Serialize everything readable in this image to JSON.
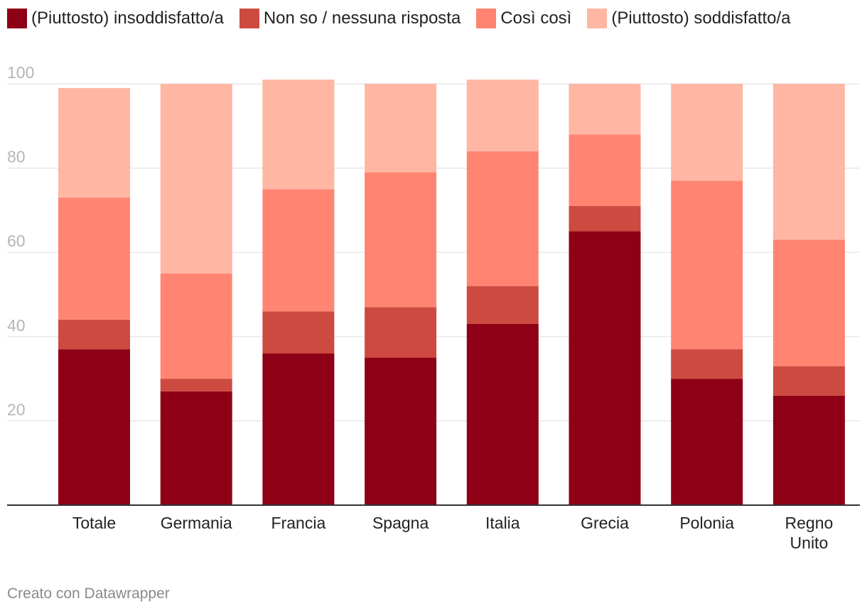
{
  "chart_data": {
    "type": "bar",
    "stacked": true,
    "categories": [
      "Totale",
      "Germania",
      "Francia",
      "Spagna",
      "Italia",
      "Grecia",
      "Polonia",
      "Regno Unito"
    ],
    "series": [
      {
        "name": "(Piuttosto) insoddisfatto/a",
        "color": "#8e0016",
        "values": [
          37,
          27,
          36,
          35,
          43,
          65,
          30,
          26
        ]
      },
      {
        "name": "Non so / nessuna risposta",
        "color": "#cd4a40",
        "values": [
          7,
          3,
          10,
          12,
          9,
          6,
          7,
          7
        ]
      },
      {
        "name": "Così così",
        "color": "#ff8572",
        "values": [
          29,
          25,
          29,
          32,
          32,
          17,
          40,
          30
        ]
      },
      {
        "name": "(Piuttosto) soddisfatto/a",
        "color": "#ffb6a3",
        "values": [
          26,
          45,
          26,
          21,
          17,
          12,
          23,
          37
        ]
      }
    ],
    "yticks": [
      20,
      40,
      60,
      80,
      100
    ],
    "ylim": [
      0,
      100
    ],
    "grid": true,
    "legend_position": "top-left"
  },
  "footer": "Creato con Datawrapper"
}
